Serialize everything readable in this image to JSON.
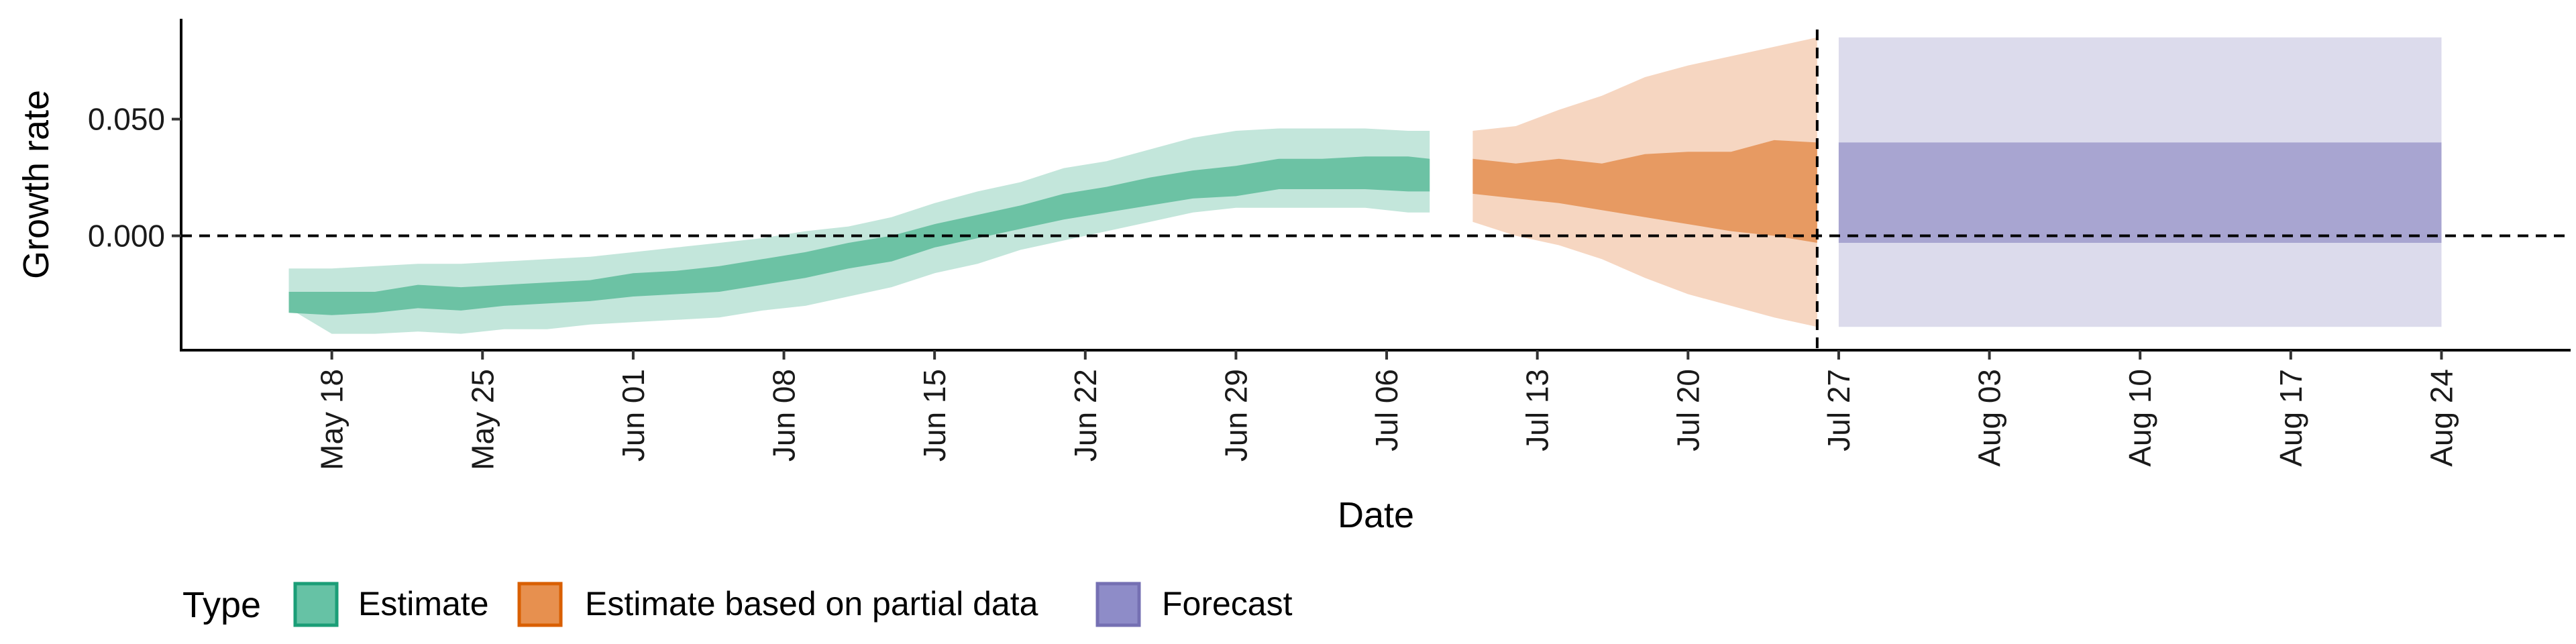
{
  "chart_data": {
    "type": "area",
    "xlabel": "Date",
    "ylabel": "Growth rate",
    "x_axis_type": "date",
    "x_range": [
      "2020-05-11",
      "2020-08-30"
    ],
    "ylim": [
      -0.049,
      0.093
    ],
    "y_ticks": [
      {
        "value": 0.0,
        "label": "0.000"
      },
      {
        "value": 0.05,
        "label": "0.050"
      }
    ],
    "x_ticks": [
      {
        "date": "2020-05-18",
        "label": "May 18"
      },
      {
        "date": "2020-05-25",
        "label": "May 25"
      },
      {
        "date": "2020-06-01",
        "label": "Jun 01"
      },
      {
        "date": "2020-06-08",
        "label": "Jun 08"
      },
      {
        "date": "2020-06-15",
        "label": "Jun 15"
      },
      {
        "date": "2020-06-22",
        "label": "Jun 22"
      },
      {
        "date": "2020-06-29",
        "label": "Jun 29"
      },
      {
        "date": "2020-07-06",
        "label": "Jul 06"
      },
      {
        "date": "2020-07-13",
        "label": "Jul 13"
      },
      {
        "date": "2020-07-20",
        "label": "Jul 20"
      },
      {
        "date": "2020-07-27",
        "label": "Jul 27"
      },
      {
        "date": "2020-08-03",
        "label": "Aug 03"
      },
      {
        "date": "2020-08-10",
        "label": "Aug 10"
      },
      {
        "date": "2020-08-17",
        "label": "Aug 17"
      },
      {
        "date": "2020-08-24",
        "label": "Aug 24"
      }
    ],
    "reference_lines": {
      "horizontal_y": 0.0,
      "vertical_date": "2020-07-26"
    },
    "grid": false,
    "legend": {
      "title": "Type",
      "position": "bottom-left",
      "items": [
        {
          "label": "Estimate",
          "color": "#66c2a5"
        },
        {
          "label": "Estimate based on partial data",
          "color": "#e7904f"
        },
        {
          "label": "Forecast",
          "color": "#8e8cc8"
        }
      ]
    },
    "series": [
      {
        "name": "Estimate",
        "color_fill": "#6cc2a4",
        "color_outer": "#c3e6db",
        "points": [
          {
            "date": "2020-05-16",
            "outer_lo": -0.031,
            "outer_hi": -0.014,
            "inner_lo": -0.033,
            "inner_hi": -0.024
          },
          {
            "date": "2020-05-18",
            "outer_lo": -0.042,
            "outer_hi": -0.014,
            "inner_lo": -0.034,
            "inner_hi": -0.024
          },
          {
            "date": "2020-05-20",
            "outer_lo": -0.042,
            "outer_hi": -0.013,
            "inner_lo": -0.033,
            "inner_hi": -0.024
          },
          {
            "date": "2020-05-22",
            "outer_lo": -0.041,
            "outer_hi": -0.012,
            "inner_lo": -0.031,
            "inner_hi": -0.021
          },
          {
            "date": "2020-05-24",
            "outer_lo": -0.042,
            "outer_hi": -0.012,
            "inner_lo": -0.032,
            "inner_hi": -0.022
          },
          {
            "date": "2020-05-26",
            "outer_lo": -0.04,
            "outer_hi": -0.011,
            "inner_lo": -0.03,
            "inner_hi": -0.021
          },
          {
            "date": "2020-05-28",
            "outer_lo": -0.04,
            "outer_hi": -0.01,
            "inner_lo": -0.029,
            "inner_hi": -0.02
          },
          {
            "date": "2020-05-30",
            "outer_lo": -0.038,
            "outer_hi": -0.009,
            "inner_lo": -0.028,
            "inner_hi": -0.019
          },
          {
            "date": "2020-06-01",
            "outer_lo": -0.037,
            "outer_hi": -0.007,
            "inner_lo": -0.026,
            "inner_hi": -0.016
          },
          {
            "date": "2020-06-03",
            "outer_lo": -0.036,
            "outer_hi": -0.005,
            "inner_lo": -0.025,
            "inner_hi": -0.015
          },
          {
            "date": "2020-06-05",
            "outer_lo": -0.035,
            "outer_hi": -0.003,
            "inner_lo": -0.024,
            "inner_hi": -0.013
          },
          {
            "date": "2020-06-07",
            "outer_lo": -0.032,
            "outer_hi": -0.001,
            "inner_lo": -0.021,
            "inner_hi": -0.01
          },
          {
            "date": "2020-06-09",
            "outer_lo": -0.03,
            "outer_hi": 0.002,
            "inner_lo": -0.018,
            "inner_hi": -0.007
          },
          {
            "date": "2020-06-11",
            "outer_lo": -0.026,
            "outer_hi": 0.004,
            "inner_lo": -0.014,
            "inner_hi": -0.003
          },
          {
            "date": "2020-06-13",
            "outer_lo": -0.022,
            "outer_hi": 0.008,
            "inner_lo": -0.011,
            "inner_hi": 0.0
          },
          {
            "date": "2020-06-15",
            "outer_lo": -0.016,
            "outer_hi": 0.014,
            "inner_lo": -0.005,
            "inner_hi": 0.005
          },
          {
            "date": "2020-06-17",
            "outer_lo": -0.012,
            "outer_hi": 0.019,
            "inner_lo": -0.001,
            "inner_hi": 0.009
          },
          {
            "date": "2020-06-19",
            "outer_lo": -0.006,
            "outer_hi": 0.023,
            "inner_lo": 0.003,
            "inner_hi": 0.013
          },
          {
            "date": "2020-06-21",
            "outer_lo": -0.002,
            "outer_hi": 0.029,
            "inner_lo": 0.007,
            "inner_hi": 0.018
          },
          {
            "date": "2020-06-23",
            "outer_lo": 0.002,
            "outer_hi": 0.032,
            "inner_lo": 0.01,
            "inner_hi": 0.021
          },
          {
            "date": "2020-06-25",
            "outer_lo": 0.006,
            "outer_hi": 0.037,
            "inner_lo": 0.013,
            "inner_hi": 0.025
          },
          {
            "date": "2020-06-27",
            "outer_lo": 0.01,
            "outer_hi": 0.042,
            "inner_lo": 0.016,
            "inner_hi": 0.028
          },
          {
            "date": "2020-06-29",
            "outer_lo": 0.012,
            "outer_hi": 0.045,
            "inner_lo": 0.017,
            "inner_hi": 0.03
          },
          {
            "date": "2020-07-01",
            "outer_lo": 0.012,
            "outer_hi": 0.046,
            "inner_lo": 0.02,
            "inner_hi": 0.033
          },
          {
            "date": "2020-07-03",
            "outer_lo": 0.012,
            "outer_hi": 0.046,
            "inner_lo": 0.02,
            "inner_hi": 0.033
          },
          {
            "date": "2020-07-05",
            "outer_lo": 0.012,
            "outer_hi": 0.046,
            "inner_lo": 0.02,
            "inner_hi": 0.034
          },
          {
            "date": "2020-07-07",
            "outer_lo": 0.01,
            "outer_hi": 0.045,
            "inner_lo": 0.019,
            "inner_hi": 0.034
          },
          {
            "date": "2020-07-08",
            "outer_lo": 0.01,
            "outer_hi": 0.045,
            "inner_lo": 0.019,
            "inner_hi": 0.033
          }
        ]
      },
      {
        "name": "Estimate based on partial data",
        "color_fill": "#e79a62",
        "color_outer": "#f6d6c1",
        "points": [
          {
            "date": "2020-07-10",
            "outer_lo": 0.006,
            "outer_hi": 0.045,
            "inner_lo": 0.018,
            "inner_hi": 0.033
          },
          {
            "date": "2020-07-12",
            "outer_lo": 0.0,
            "outer_hi": 0.047,
            "inner_lo": 0.016,
            "inner_hi": 0.031
          },
          {
            "date": "2020-07-14",
            "outer_lo": -0.004,
            "outer_hi": 0.054,
            "inner_lo": 0.014,
            "inner_hi": 0.033
          },
          {
            "date": "2020-07-16",
            "outer_lo": -0.01,
            "outer_hi": 0.06,
            "inner_lo": 0.011,
            "inner_hi": 0.031
          },
          {
            "date": "2020-07-18",
            "outer_lo": -0.018,
            "outer_hi": 0.068,
            "inner_lo": 0.008,
            "inner_hi": 0.035
          },
          {
            "date": "2020-07-20",
            "outer_lo": -0.025,
            "outer_hi": 0.073,
            "inner_lo": 0.005,
            "inner_hi": 0.036
          },
          {
            "date": "2020-07-22",
            "outer_lo": -0.03,
            "outer_hi": 0.077,
            "inner_lo": 0.002,
            "inner_hi": 0.036
          },
          {
            "date": "2020-07-24",
            "outer_lo": -0.035,
            "outer_hi": 0.081,
            "inner_lo": 0.0,
            "inner_hi": 0.041
          },
          {
            "date": "2020-07-26",
            "outer_lo": -0.039,
            "outer_hi": 0.085,
            "inner_lo": -0.003,
            "inner_hi": 0.04
          }
        ]
      },
      {
        "name": "Forecast",
        "color_fill": "#a8a5d1",
        "color_outer": "#dcdbec",
        "points": [
          {
            "date": "2020-07-27",
            "outer_lo": -0.039,
            "outer_hi": 0.085,
            "inner_lo": -0.003,
            "inner_hi": 0.04
          },
          {
            "date": "2020-08-24",
            "outer_lo": -0.039,
            "outer_hi": 0.085,
            "inner_lo": -0.003,
            "inner_hi": 0.04
          }
        ]
      }
    ]
  }
}
